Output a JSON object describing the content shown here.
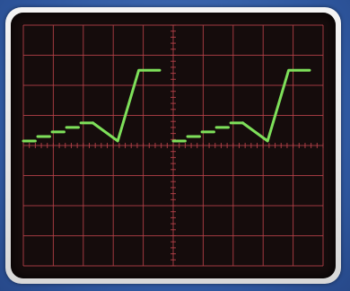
{
  "image": {
    "subject": "oscilloscope-display",
    "colors": {
      "background": "#2f58a0",
      "bezel": "#e6e6e6",
      "screen": "#150c0c",
      "grid": "#b8424a",
      "trace": "#7ee05a"
    },
    "grid": {
      "columns": 10,
      "rows": 8
    },
    "waveform": {
      "periods": 2,
      "step_levels": [
        0.15,
        0.3,
        0.45,
        0.6,
        0.75
      ],
      "ramp_bottom": 0.15,
      "ramp_top": 2.5,
      "top_hold": 2.5
    }
  }
}
